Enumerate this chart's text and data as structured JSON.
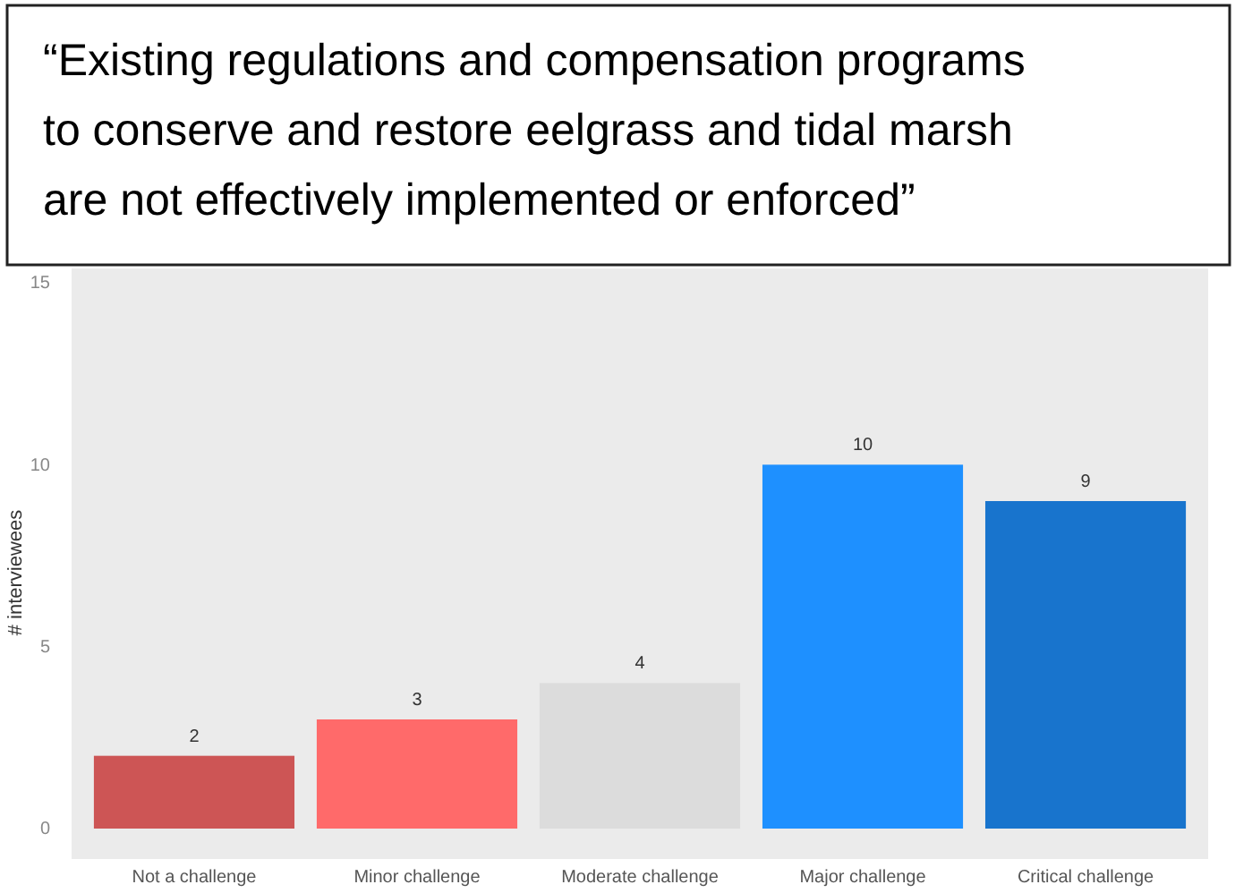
{
  "chart_data": {
    "type": "bar",
    "title": "“Existing regulations and compensation programs\nto conserve and restore eelgrass and tidal marsh\nare not effectively implemented or enforced”",
    "ylabel": "# interviewees",
    "categories": [
      "Not a challenge",
      "Minor challenge",
      "Moderate challenge",
      "Major challenge",
      "Critical challenge"
    ],
    "values": [
      2,
      3,
      4,
      10,
      9
    ],
    "colors": [
      "#cd5555",
      "#ff6a6a",
      "#dcdcdc",
      "#1e90ff",
      "#1874cd"
    ],
    "ylim": [
      0,
      15
    ],
    "yticks": [
      0,
      5,
      10,
      15
    ],
    "grid": false,
    "data_labels": true
  }
}
